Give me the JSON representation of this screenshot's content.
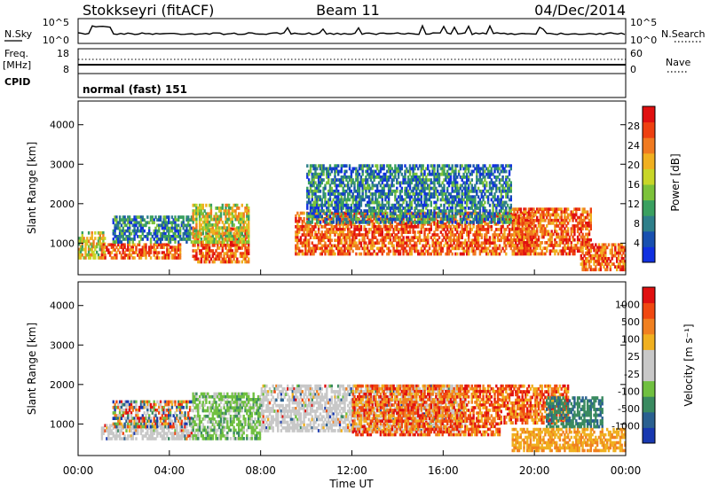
{
  "header": {
    "station": "Stokkseyri (fitACF)",
    "beam": "Beam 11",
    "date": "04/Dec/2014"
  },
  "noise_panel": {
    "left_label_top": "N.Sky",
    "right_label": "N.Search",
    "left_ticks": [
      "10^5",
      "10^0"
    ],
    "right_ticks": [
      "10^5",
      "10^0"
    ]
  },
  "freq_panel": {
    "left_label_top": "Freq.",
    "left_label_unit": "[MHz]",
    "right_label": "Nave",
    "left_ticks": [
      "18",
      "8"
    ],
    "right_ticks": [
      "60",
      "0"
    ]
  },
  "cpid_panel": {
    "label": "CPID",
    "text": "normal (fast) 151"
  },
  "chart_data": [
    {
      "type": "heatmap",
      "name": "power",
      "ylabel": "Slant Range [km]",
      "ylim": [
        200,
        4600
      ],
      "yticks": [
        "1000",
        "2000",
        "3000",
        "4000"
      ],
      "xlim": [
        0,
        24
      ],
      "colorbar": {
        "label": "Power [dB]",
        "ticks": [
          "4",
          "8",
          "12",
          "16",
          "20",
          "24",
          "28"
        ],
        "colors": [
          "#1030e0",
          "#1850b0",
          "#2e7f8a",
          "#3aa060",
          "#7cc23a",
          "#c8d628",
          "#f0b020",
          "#f07a20",
          "#ee4010",
          "#e01010"
        ]
      },
      "bands": [
        {
          "t0": 0.0,
          "t1": 1.2,
          "r0": 600,
          "r1": 1300,
          "level": "mid"
        },
        {
          "t0": 1.0,
          "t1": 4.5,
          "r0": 600,
          "r1": 1000,
          "level": "high"
        },
        {
          "t0": 1.5,
          "t1": 5.0,
          "r0": 1000,
          "r1": 1700,
          "level": "low"
        },
        {
          "t0": 5.0,
          "t1": 7.5,
          "r0": 500,
          "r1": 1400,
          "level": "high"
        },
        {
          "t0": 5.0,
          "t1": 7.5,
          "r0": 1000,
          "r1": 2000,
          "level": "mid"
        },
        {
          "t0": 9.5,
          "t1": 20.0,
          "r0": 700,
          "r1": 1800,
          "level": "high"
        },
        {
          "t0": 10.0,
          "t1": 19.0,
          "r0": 1500,
          "r1": 3000,
          "level": "low"
        },
        {
          "t0": 19.0,
          "t1": 22.5,
          "r0": 700,
          "r1": 1900,
          "level": "high"
        },
        {
          "t0": 22.0,
          "t1": 24.0,
          "r0": 300,
          "r1": 1000,
          "level": "high"
        }
      ]
    },
    {
      "type": "heatmap",
      "name": "velocity",
      "ylabel": "Slant Range [km]",
      "ylim": [
        200,
        4600
      ],
      "yticks": [
        "1000",
        "2000",
        "3000",
        "4000"
      ],
      "xlim": [
        0,
        24
      ],
      "xlabel": "Time UT",
      "xticks": [
        "00:00",
        "04:00",
        "08:00",
        "12:00",
        "16:00",
        "20:00",
        "00:00"
      ],
      "colorbar": {
        "label": "Velocity [m s⁻¹]",
        "ticks": [
          "1000",
          "500",
          "100",
          "25",
          "-25",
          "-100",
          "-500",
          "-1000"
        ],
        "colors": [
          "#1838b0",
          "#2a6090",
          "#3a8a60",
          "#70c040",
          "#c8c8c8",
          "#c8c8c8",
          "#f0b020",
          "#f08020",
          "#f04810",
          "#e01010"
        ]
      },
      "bands": [
        {
          "t0": 1.0,
          "t1": 5.0,
          "r0": 600,
          "r1": 1000,
          "level": "ground"
        },
        {
          "t0": 1.5,
          "t1": 5.0,
          "r0": 900,
          "r1": 1600,
          "level": "mixed"
        },
        {
          "t0": 5.0,
          "t1": 8.0,
          "r0": 600,
          "r1": 1800,
          "level": "green"
        },
        {
          "t0": 8.0,
          "t1": 17.0,
          "r0": 800,
          "r1": 2000,
          "level": "ground"
        },
        {
          "t0": 12.0,
          "t1": 18.5,
          "r0": 700,
          "r1": 2000,
          "level": "red"
        },
        {
          "t0": 18.5,
          "t1": 21.5,
          "r0": 1000,
          "r1": 2000,
          "level": "red"
        },
        {
          "t0": 20.5,
          "t1": 23.0,
          "r0": 900,
          "r1": 1700,
          "level": "teal"
        },
        {
          "t0": 19.0,
          "t1": 24.0,
          "r0": 300,
          "r1": 900,
          "level": "orange"
        }
      ]
    }
  ]
}
